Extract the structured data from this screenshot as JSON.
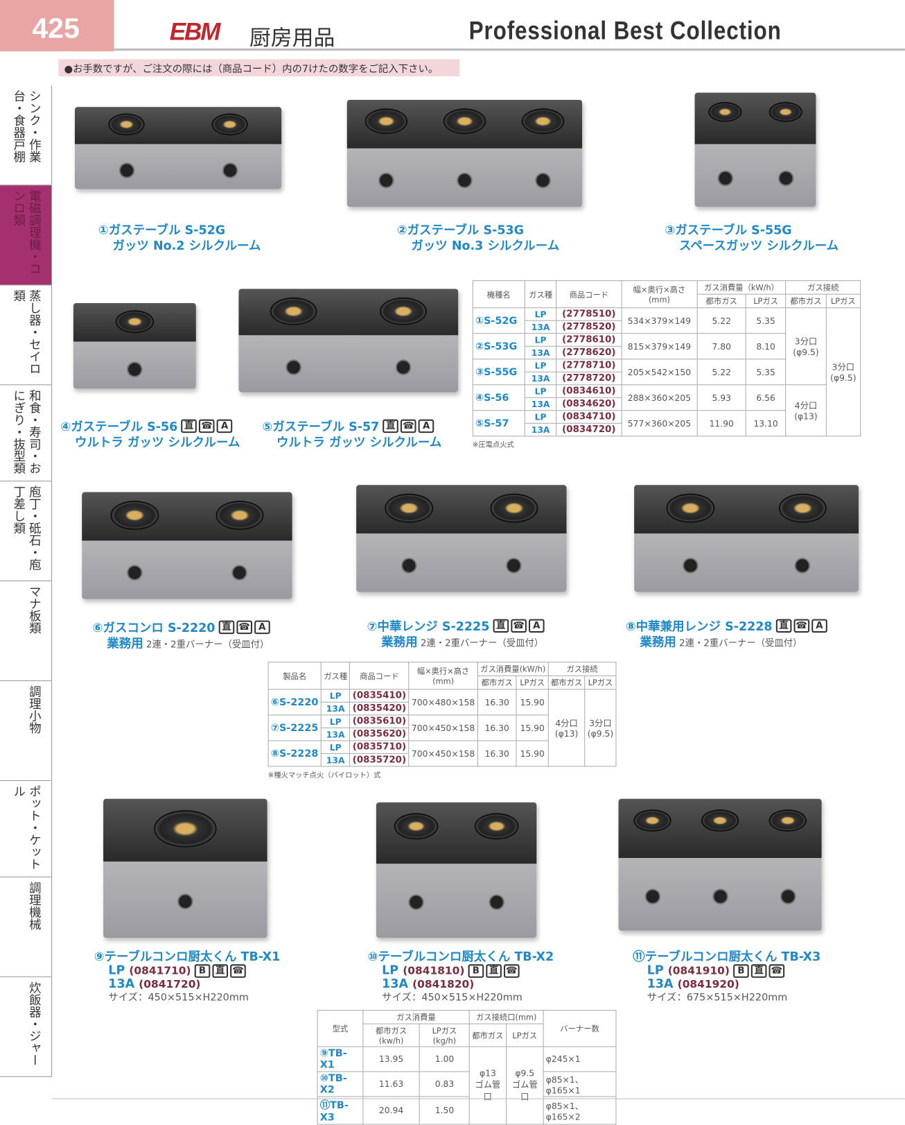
{
  "header": {
    "page_number": "425",
    "logo": "EBM",
    "category": "厨房用品",
    "collection": "Professional Best Collection"
  },
  "notice": "●お手数ですが、ご注文の際には（商品コード）内の7けたの数字をご記入下さい。",
  "sidebar": [
    {
      "label": "シンク・作業台・食器戸棚",
      "active": false
    },
    {
      "label": "電磁調理機・コンロ類",
      "active": true
    },
    {
      "label": "蒸し器・セイロ類",
      "active": false
    },
    {
      "label": "和食・寿司・おにぎり・抜型類",
      "active": false
    },
    {
      "label": "庖丁・砥石・庖丁差し類",
      "active": false
    },
    {
      "label": "マナ板類",
      "active": false
    },
    {
      "label": "調理小物",
      "active": false
    },
    {
      "label": "ポット・ケットル",
      "active": false
    },
    {
      "label": "調理機械",
      "active": false
    },
    {
      "label": "炊飯器・ジャー",
      "active": false
    }
  ],
  "products": [
    {
      "title": "①ガステーブル S-52G",
      "sub": "ガッツ No.2 シルクルーム",
      "icons": []
    },
    {
      "title": "②ガステーブル S-53G",
      "sub": "ガッツ No.3 シルクルーム",
      "icons": []
    },
    {
      "title": "③ガステーブル S-55G",
      "sub": "スペースガッツ シルクルーム",
      "icons": []
    },
    {
      "title": "④ガステーブル S-56",
      "sub": "ウルトラ ガッツ シルクルーム",
      "icons": [
        "直",
        "☎",
        "A"
      ]
    },
    {
      "title": "⑤ガステーブル S-57",
      "sub": "ウルトラ ガッツ シルクルーム",
      "icons": [
        "直",
        "☎",
        "A"
      ]
    },
    {
      "title": "⑥ガスコンロ S-2220",
      "sub": "業務用",
      "desc": "2連・2重バーナー（受皿付）",
      "icons": [
        "直",
        "☎",
        "A"
      ]
    },
    {
      "title": "⑦中華レンジ S-2225",
      "sub": "業務用",
      "desc": "2連・2重バーナー（受皿付）",
      "icons": [
        "直",
        "☎",
        "A"
      ]
    },
    {
      "title": "⑧中華兼用レンジ S-2228",
      "sub": "業務用",
      "desc": "2連・2重バーナー（受皿付）",
      "icons": [
        "直",
        "☎",
        "A"
      ]
    },
    {
      "title": "⑨テーブルコンロ厨太くん TB-X1",
      "lp": "LP",
      "lp_code": "(0841710)",
      "a13": "13A",
      "a13_code": "(0841720)",
      "size": "サイズ：450×515×H220mm",
      "icons": [
        "B",
        "直",
        "☎"
      ]
    },
    {
      "title": "⑩テーブルコンロ厨太くん TB-X2",
      "lp": "LP",
      "lp_code": "(0841810)",
      "a13": "13A",
      "a13_code": "(0841820)",
      "size": "サイズ：450×515×H220mm",
      "icons": [
        "B",
        "直",
        "☎"
      ]
    },
    {
      "title": "⑪テーブルコンロ厨太くん TB-X3",
      "lp": "LP",
      "lp_code": "(0841910)",
      "a13": "13A",
      "a13_code": "(0841920)",
      "size": "サイズ：675×515×H220mm",
      "icons": [
        "B",
        "直",
        "☎"
      ]
    }
  ],
  "table1": {
    "headers": {
      "model": "機種名",
      "gas": "ガス種",
      "code": "商品コード",
      "dims": "幅×奥行×高さ",
      "dims_unit": "(mm)",
      "consumption": "ガス消費量（kW/h）",
      "connection": "ガス接続",
      "city": "都市ガス",
      "lp": "LPガス"
    },
    "rows": [
      {
        "model": "①S-52G",
        "codes": [
          [
            "LP",
            "(2778510)"
          ],
          [
            "13A",
            "(2778520)"
          ]
        ],
        "dims": "534×379×149",
        "city": "5.22",
        "lp": "5.35"
      },
      {
        "model": "②S-53G",
        "codes": [
          [
            "LP",
            "(2778610)"
          ],
          [
            "13A",
            "(2778620)"
          ]
        ],
        "dims": "815×379×149",
        "city": "7.80",
        "lp": "8.10"
      },
      {
        "model": "③S-55G",
        "codes": [
          [
            "LP",
            "(2778710)"
          ],
          [
            "13A",
            "(2778720)"
          ]
        ],
        "dims": "205×542×150",
        "city": "5.22",
        "lp": "5.35"
      },
      {
        "model": "④S-56",
        "codes": [
          [
            "LP",
            "(0834610)"
          ],
          [
            "13A",
            "(0834620)"
          ]
        ],
        "dims": "288×360×205",
        "city": "5.93",
        "lp": "6.56"
      },
      {
        "model": "⑤S-57",
        "codes": [
          [
            "LP",
            "(0834710)"
          ],
          [
            "13A",
            "(0834720)"
          ]
        ],
        "dims": "577×360×205",
        "city": "11.90",
        "lp": "13.10"
      }
    ],
    "conn_city_a": "3分口\n(φ9.5)",
    "conn_city_b": "4分口\n(φ13)",
    "conn_lp": "3分口\n(φ9.5)",
    "note": "※圧電点火式"
  },
  "table2": {
    "headers": {
      "model": "製品名",
      "gas": "ガス種",
      "code": "商品コード",
      "dims": "幅×奥行×高さ",
      "dims_unit": "(mm)",
      "consumption": "ガス消費量(kW/h)",
      "connection": "ガス接続",
      "city": "都市ガス",
      "lp": "LPガス"
    },
    "rows": [
      {
        "model": "⑥S-2220",
        "codes": [
          [
            "LP",
            "(0835410)"
          ],
          [
            "13A",
            "(0835420)"
          ]
        ],
        "dims": "700×480×158",
        "city": "16.30",
        "lp": "15.90"
      },
      {
        "model": "⑦S-2225",
        "codes": [
          [
            "LP",
            "(0835610)"
          ],
          [
            "13A",
            "(0835620)"
          ]
        ],
        "dims": "700×450×158",
        "city": "16.30",
        "lp": "15.90"
      },
      {
        "model": "⑧S-2228",
        "codes": [
          [
            "LP",
            "(0835710)"
          ],
          [
            "13A",
            "(0835720)"
          ]
        ],
        "dims": "700×450×158",
        "city": "16.30",
        "lp": "15.90"
      }
    ],
    "conn_city": "4分口\n(φ13)",
    "conn_lp": "3分口\n(φ9.5)",
    "note": "※種火マッチ点火（パイロット）式"
  },
  "table3": {
    "headers": {
      "model": "型式",
      "consumption": "ガス消費量",
      "city": "都市ガス(kw/h)",
      "lp": "LPガス(kg/h)",
      "connection": "ガス接続口(mm)",
      "conn_city": "都市ガス",
      "conn_lp": "LPガス",
      "burners": "バーナー数"
    },
    "rows": [
      {
        "model": "⑨TB-X1",
        "city": "13.95",
        "lp": "1.00",
        "burners": "φ245×1"
      },
      {
        "model": "⑩TB-X2",
        "city": "11.63",
        "lp": "0.83",
        "burners": "φ85×1、φ165×1"
      },
      {
        "model": "⑪TB-X3",
        "city": "20.94",
        "lp": "1.50",
        "burners": "φ85×1、φ165×2"
      }
    ],
    "conn_city": "φ13\nゴム管口",
    "conn_lp": "φ9.5\nゴム管口"
  }
}
